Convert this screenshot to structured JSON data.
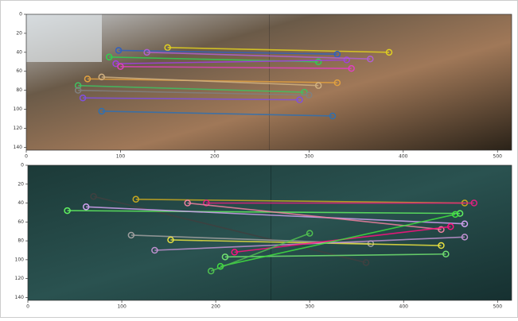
{
  "chart_data": [
    {
      "type": "matches",
      "xlim": [
        0,
        515
      ],
      "ylim": [
        143,
        0
      ],
      "xticks": [
        0,
        100,
        200,
        300,
        400,
        500
      ],
      "yticks": [
        0,
        20,
        40,
        60,
        80,
        100,
        120,
        140
      ],
      "series": [
        {
          "color": "#e0d020",
          "x": [
            150,
            385
          ],
          "values": [
            35,
            40
          ]
        },
        {
          "color": "#3060c0",
          "x": [
            98,
            330
          ],
          "values": [
            38,
            42
          ]
        },
        {
          "color": "#30d050",
          "x": [
            88,
            310
          ],
          "values": [
            45,
            50
          ]
        },
        {
          "color": "#a040e0",
          "x": [
            95,
            340
          ],
          "values": [
            52,
            48
          ]
        },
        {
          "color": "#e040c0",
          "x": [
            100,
            345
          ],
          "values": [
            55,
            57
          ]
        },
        {
          "color": "#e0a040",
          "x": [
            65,
            330
          ],
          "values": [
            68,
            72
          ]
        },
        {
          "color": "#d0b080",
          "x": [
            80,
            310
          ],
          "values": [
            66,
            75
          ]
        },
        {
          "color": "#40c060",
          "x": [
            55,
            295
          ],
          "values": [
            75,
            82
          ]
        },
        {
          "color": "#8050e0",
          "x": [
            60,
            290
          ],
          "values": [
            88,
            90
          ]
        },
        {
          "color": "#3070b0",
          "x": [
            80,
            325
          ],
          "values": [
            102,
            107
          ]
        },
        {
          "color": "#b060d0",
          "x": [
            128,
            365
          ],
          "values": [
            40,
            47
          ]
        },
        {
          "color": "#808080",
          "x": [
            55,
            300
          ],
          "values": [
            80,
            85
          ]
        }
      ]
    },
    {
      "type": "matches",
      "xlim": [
        0,
        515
      ],
      "ylim": [
        143,
        0
      ],
      "xticks": [
        0,
        100,
        200,
        300,
        400,
        500
      ],
      "yticks": [
        0,
        20,
        40,
        60,
        80,
        100,
        120,
        140
      ],
      "series": [
        {
          "color": "#c8a820",
          "x": [
            115,
            465
          ],
          "values": [
            36,
            40
          ]
        },
        {
          "color": "#e02080",
          "x": [
            190,
            475
          ],
          "values": [
            40,
            40
          ]
        },
        {
          "color": "#404040",
          "x": [
            70,
            360
          ],
          "values": [
            33,
            103
          ]
        },
        {
          "color": "#60f060",
          "x": [
            42,
            460
          ],
          "values": [
            48,
            51
          ]
        },
        {
          "color": "#d0a0f0",
          "x": [
            62,
            465
          ],
          "values": [
            44,
            62
          ]
        },
        {
          "color": "#f080a0",
          "x": [
            170,
            440
          ],
          "values": [
            40,
            68
          ]
        },
        {
          "color": "#a0a0a0",
          "x": [
            110,
            365
          ],
          "values": [
            74,
            83
          ]
        },
        {
          "color": "#e8e040",
          "x": [
            152,
            440
          ],
          "values": [
            79,
            85
          ]
        },
        {
          "color": "#c090d0",
          "x": [
            135,
            465
          ],
          "values": [
            90,
            76
          ]
        },
        {
          "color": "#ff1080",
          "x": [
            220,
            450
          ],
          "values": [
            92,
            65
          ]
        },
        {
          "color": "#70e070",
          "x": [
            210,
            445
          ],
          "values": [
            97,
            94
          ]
        },
        {
          "color": "#40e040",
          "x": [
            205,
            455
          ],
          "values": [
            107,
            52
          ]
        },
        {
          "color": "#50c050",
          "x": [
            195,
            300
          ],
          "values": [
            112,
            72
          ]
        }
      ]
    }
  ]
}
